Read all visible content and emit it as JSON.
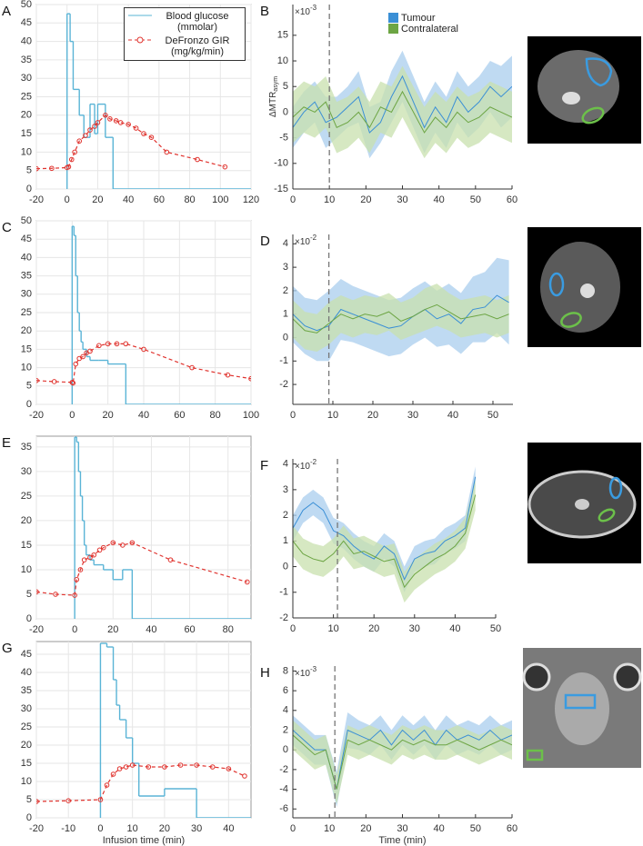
{
  "chart_data": [
    {
      "type": "line",
      "panel": "A",
      "xlim": [
        -20,
        120
      ],
      "xticks": [
        -20,
        0,
        20,
        40,
        60,
        80,
        100,
        120
      ],
      "ylim": [
        0,
        50
      ],
      "yticks": [
        0,
        5,
        10,
        15,
        20,
        25,
        30,
        35,
        40,
        45,
        50
      ],
      "grid": true,
      "legend": "upper right",
      "series": [
        {
          "name": "Blood glucose (mmolar)",
          "color": "#5ab4d6",
          "step": true,
          "x": [
            0,
            2,
            4,
            8,
            11,
            15,
            18,
            20,
            25,
            30
          ],
          "values": [
            47.5,
            40,
            27,
            20,
            14,
            23,
            15,
            23,
            14,
            0
          ]
        },
        {
          "name": "DeFronzo GIR (mg/kg/min)",
          "color": "#e0332e",
          "dashed": true,
          "markers": true,
          "x": [
            -20,
            -10,
            0,
            1,
            3,
            5,
            8,
            12,
            15,
            18,
            20,
            25,
            28,
            32,
            35,
            40,
            45,
            50,
            55,
            65,
            85,
            103
          ],
          "values": [
            5.5,
            5.6,
            5.8,
            6,
            8,
            10,
            13,
            14.5,
            16,
            17,
            18,
            20,
            19,
            18.5,
            18,
            17.5,
            16.5,
            15,
            14,
            10,
            8,
            6
          ]
        }
      ]
    },
    {
      "type": "line",
      "panel": "B",
      "xlim": [
        0,
        60
      ],
      "xticks": [
        0,
        10,
        20,
        30,
        40,
        50,
        60
      ],
      "ylim": [
        -15,
        21
      ],
      "yticks": [
        -15,
        -10,
        -5,
        0,
        5,
        10,
        15
      ],
      "grid": false,
      "legend": "upper center",
      "y_multiplier": "×10",
      "y_exponent": "-3",
      "ylabel": "ΔMTR",
      "ylabel_sub": "asym",
      "vline": 10,
      "series": [
        {
          "name": "Tumour",
          "color": "#3a8fd6",
          "band_color": "#a9cdee",
          "x": [
            0,
            3,
            6,
            9,
            12,
            15,
            18,
            21,
            24,
            27,
            30,
            33,
            36,
            39,
            42,
            45,
            48,
            51,
            54,
            57,
            60
          ],
          "values": [
            -3,
            0,
            2,
            -2,
            -1,
            1,
            3,
            -4,
            -2,
            3,
            7,
            2,
            -3,
            1,
            -2,
            3,
            0,
            2,
            5,
            3,
            5
          ],
          "error": [
            4,
            4,
            4,
            5,
            4,
            4,
            5,
            5,
            4,
            5,
            5,
            5,
            5,
            5,
            5,
            5,
            5,
            5,
            5,
            6,
            6
          ]
        },
        {
          "name": "Contralateral",
          "color": "#6da544",
          "band_color": "#c8e0ad",
          "x": [
            0,
            3,
            6,
            9,
            12,
            15,
            18,
            21,
            24,
            27,
            30,
            33,
            36,
            39,
            42,
            45,
            48,
            51,
            54,
            57,
            60
          ],
          "values": [
            -1,
            1,
            0,
            2,
            -3,
            -2,
            0,
            -3,
            1,
            0,
            4,
            0,
            -4,
            -1,
            -3,
            0,
            -2,
            -1,
            1,
            0,
            -1
          ],
          "error": [
            5,
            5,
            5,
            5,
            5,
            5,
            5,
            5,
            5,
            5,
            5,
            5,
            5,
            5,
            5,
            5,
            5,
            5,
            5,
            5,
            5
          ]
        }
      ]
    },
    {
      "type": "line",
      "panel": "C",
      "xlim": [
        -20,
        100
      ],
      "xticks": [
        -20,
        0,
        20,
        40,
        60,
        80,
        100
      ],
      "ylim": [
        0,
        50
      ],
      "yticks": [
        0,
        5,
        10,
        15,
        20,
        25,
        30,
        35,
        40,
        45,
        50
      ],
      "grid": true,
      "series": [
        {
          "color": "#5ab4d6",
          "step": true,
          "x": [
            0,
            1,
            2,
            3,
            4,
            5,
            6,
            8,
            10,
            15,
            20,
            30
          ],
          "values": [
            48.5,
            46,
            35,
            25,
            20,
            17,
            15,
            13,
            12,
            12,
            11,
            0
          ]
        },
        {
          "color": "#e0332e",
          "dashed": true,
          "markers": true,
          "x": [
            -20,
            -10,
            0,
            0.5,
            2,
            4,
            6,
            8,
            10,
            15,
            20,
            25,
            30,
            40,
            67,
            87,
            100
          ],
          "values": [
            6.5,
            6.2,
            6,
            5.8,
            11,
            12.5,
            13,
            14,
            14.5,
            16,
            16.5,
            16.5,
            16.5,
            15,
            10,
            8,
            7
          ]
        }
      ]
    },
    {
      "type": "line",
      "panel": "D",
      "xlim": [
        0,
        55
      ],
      "xticks": [
        0,
        10,
        20,
        30,
        40,
        50
      ],
      "ylim": [
        -2.85,
        4.4
      ],
      "yticks": [
        -2,
        -1,
        0,
        1,
        2,
        3,
        4
      ],
      "grid": false,
      "y_multiplier": "×10",
      "y_exponent": "-2",
      "vline": 9,
      "series": [
        {
          "color": "#3a8fd6",
          "band_color": "#a9cdee",
          "x": [
            0,
            3,
            6,
            9,
            12,
            15,
            18,
            21,
            24,
            27,
            30,
            33,
            36,
            39,
            42,
            45,
            48,
            51,
            54
          ],
          "values": [
            1,
            0.5,
            0.3,
            0.5,
            1.2,
            1,
            0.8,
            0.6,
            0.4,
            0.5,
            0.9,
            1.2,
            0.8,
            1,
            0.6,
            1.2,
            1.3,
            1.8,
            1.5
          ],
          "error": [
            1.2,
            1.2,
            1.3,
            1.5,
            1.3,
            1.2,
            1.2,
            1.2,
            1.2,
            1.2,
            1.2,
            1.2,
            1.2,
            1.3,
            1.3,
            1.4,
            1.5,
            1.6,
            1.8
          ]
        },
        {
          "color": "#6da544",
          "band_color": "#c8e0ad",
          "x": [
            0,
            3,
            6,
            9,
            12,
            15,
            18,
            21,
            24,
            27,
            30,
            33,
            36,
            39,
            42,
            45,
            48,
            51,
            54
          ],
          "values": [
            0.8,
            0.3,
            0.2,
            0.6,
            1,
            0.8,
            1,
            0.9,
            1.1,
            0.7,
            0.9,
            1.2,
            1.4,
            1.1,
            0.8,
            0.9,
            1,
            0.8,
            1
          ],
          "error": [
            0.8,
            0.8,
            0.8,
            0.9,
            0.8,
            0.8,
            0.8,
            0.8,
            0.8,
            0.8,
            0.8,
            0.9,
            0.9,
            0.8,
            0.8,
            0.8,
            0.8,
            0.8,
            0.8
          ]
        }
      ]
    },
    {
      "type": "line",
      "panel": "E",
      "xlim": [
        -20,
        92
      ],
      "xticks": [
        -20,
        0,
        20,
        40,
        60,
        80
      ],
      "ylim": [
        0,
        37.2
      ],
      "yticks": [
        0,
        5,
        10,
        15,
        20,
        25,
        30,
        35
      ],
      "grid": true,
      "series": [
        {
          "color": "#5ab4d6",
          "step": true,
          "x": [
            0,
            1,
            2,
            3,
            4,
            5,
            6,
            8,
            10,
            15,
            20,
            25,
            30
          ],
          "values": [
            37,
            36,
            30,
            25,
            20,
            15,
            13,
            12,
            11,
            10,
            8,
            10,
            0
          ]
        },
        {
          "color": "#e0332e",
          "dashed": true,
          "markers": true,
          "x": [
            -20,
            -10,
            0,
            1,
            3,
            5,
            8,
            10,
            13,
            15,
            20,
            25,
            30,
            50,
            90
          ],
          "values": [
            5.5,
            5,
            4.8,
            8,
            10,
            12,
            12.5,
            13,
            14,
            14.5,
            15.5,
            15,
            15.5,
            12,
            7.5
          ]
        }
      ]
    },
    {
      "type": "line",
      "panel": "F",
      "xlim": [
        0,
        50
      ],
      "xticks": [
        0,
        10,
        20,
        30,
        40,
        50
      ],
      "ylim": [
        -2,
        4.2
      ],
      "yticks": [
        -2,
        -1,
        0,
        1,
        2,
        3,
        4
      ],
      "grid": false,
      "y_multiplier": "×10",
      "y_exponent": "-2",
      "vline": 11,
      "series": [
        {
          "color": "#3a8fd6",
          "band_color": "#a9cdee",
          "x": [
            0,
            2.5,
            5,
            7.5,
            10,
            12.5,
            15,
            17.5,
            20,
            22.5,
            25,
            27.5,
            30,
            32.5,
            35,
            37.5,
            40,
            42.5,
            45
          ],
          "values": [
            1.5,
            2.2,
            2.5,
            2.2,
            1.4,
            1.2,
            0.8,
            0.5,
            0.3,
            0.8,
            0.5,
            -0.5,
            0.3,
            0.5,
            0.6,
            1,
            1.2,
            1.5,
            3.5
          ],
          "error": [
            0.5,
            0.5,
            0.5,
            0.5,
            0.5,
            0.5,
            0.5,
            0.5,
            0.5,
            0.5,
            0.5,
            0.5,
            0.5,
            0.5,
            0.5,
            0.5,
            0.5,
            0.5,
            0.4
          ]
        },
        {
          "color": "#6da544",
          "band_color": "#c8e0ad",
          "x": [
            0,
            2.5,
            5,
            7.5,
            10,
            12.5,
            15,
            17.5,
            20,
            22.5,
            25,
            27.5,
            30,
            32.5,
            35,
            37.5,
            40,
            42.5,
            45
          ],
          "values": [
            1,
            0.5,
            0.3,
            0.2,
            0.5,
            1,
            0.5,
            0.6,
            0.4,
            0.2,
            0.3,
            -0.8,
            -0.3,
            0,
            0.3,
            0.5,
            0.8,
            1.3,
            2.8
          ],
          "error": [
            0.6,
            0.6,
            0.6,
            0.6,
            0.6,
            0.6,
            0.6,
            0.6,
            0.6,
            0.6,
            0.6,
            0.6,
            0.6,
            0.6,
            0.6,
            0.6,
            0.6,
            0.6,
            0.6
          ]
        }
      ]
    },
    {
      "type": "line",
      "panel": "G",
      "xlim": [
        -20,
        47
      ],
      "xticks": [
        -20,
        -10,
        0,
        10,
        20,
        30,
        40
      ],
      "ylim": [
        0,
        48.5
      ],
      "yticks": [
        0,
        5,
        10,
        15,
        20,
        25,
        30,
        35,
        40,
        45
      ],
      "grid": true,
      "xlabel": "Infusion time (min)",
      "series": [
        {
          "color": "#5ab4d6",
          "step": true,
          "x": [
            0,
            2,
            4,
            5,
            6,
            8,
            10,
            12,
            20,
            30
          ],
          "values": [
            48,
            47,
            38,
            31,
            27,
            22,
            15,
            6,
            8,
            0
          ]
        },
        {
          "color": "#e0332e",
          "dashed": true,
          "markers": true,
          "x": [
            -20,
            -10,
            0,
            2,
            4,
            6,
            8,
            10,
            15,
            20,
            25,
            30,
            35,
            40,
            45
          ],
          "values": [
            4.5,
            4.7,
            5,
            9,
            12,
            13.5,
            14,
            14.5,
            14,
            14,
            14.5,
            14.5,
            14,
            13.5,
            11.5
          ]
        }
      ]
    },
    {
      "type": "line",
      "panel": "H",
      "xlim": [
        0,
        60
      ],
      "xticks": [
        0,
        10,
        20,
        30,
        40,
        50,
        60
      ],
      "ylim": [
        -6.9,
        8.5
      ],
      "yticks": [
        -6,
        -4,
        -2,
        0,
        2,
        4,
        6,
        8
      ],
      "grid": false,
      "y_multiplier": "×10",
      "y_exponent": "-3",
      "vline": 11.5,
      "xlabel": "Time (min)",
      "series": [
        {
          "color": "#3a8fd6",
          "band_color": "#a9cdee",
          "x": [
            0,
            3,
            6,
            9,
            12,
            15,
            18,
            21,
            24,
            27,
            30,
            33,
            36,
            39,
            42,
            45,
            48,
            51,
            54,
            57,
            60
          ],
          "values": [
            2,
            1,
            0,
            0,
            -4,
            2,
            1.5,
            1,
            2,
            0.5,
            2,
            1,
            2,
            0.5,
            2,
            1,
            1.5,
            1,
            2,
            1,
            1.5
          ],
          "error": [
            1.5,
            1.5,
            1.5,
            1.5,
            1.8,
            1.8,
            1.5,
            1.5,
            1.5,
            1.5,
            1.5,
            1.5,
            1.5,
            1.5,
            1.5,
            1.5,
            1.5,
            1.5,
            1.5,
            1.5,
            1.5
          ]
        },
        {
          "color": "#6da544",
          "band_color": "#c8e0ad",
          "x": [
            0,
            3,
            6,
            9,
            12,
            15,
            18,
            21,
            24,
            27,
            30,
            33,
            36,
            39,
            42,
            45,
            48,
            51,
            54,
            57,
            60
          ],
          "values": [
            1.5,
            0.5,
            -0.5,
            0,
            -4,
            1,
            0.5,
            1,
            0.5,
            0,
            1,
            0.5,
            1,
            0.5,
            0.5,
            1,
            0.5,
            0,
            0.5,
            1,
            0.5
          ],
          "error": [
            1.5,
            1.5,
            1.5,
            1.5,
            1.5,
            1.5,
            1.5,
            1.5,
            1.5,
            1.5,
            1.5,
            1.5,
            1.5,
            1.5,
            1.5,
            1.5,
            1.5,
            1.5,
            1.5,
            1.5,
            1.5
          ]
        }
      ]
    }
  ]
}
